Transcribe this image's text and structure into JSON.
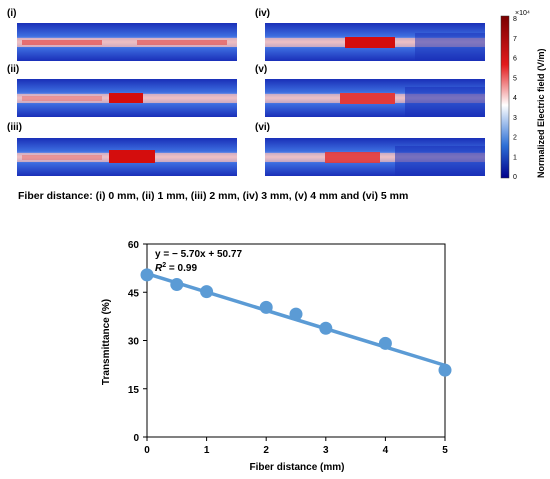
{
  "panels": [
    {
      "label": "(i)"
    },
    {
      "label": "(ii)"
    },
    {
      "label": "(iii)"
    },
    {
      "label": "(iv)"
    },
    {
      "label": "(v)"
    },
    {
      "label": "(vi)"
    }
  ],
  "colorbar": {
    "title": "Normalized Electric field (V/m)",
    "exponent": "×10⁴",
    "ticks": [
      "8",
      "7",
      "6",
      "5",
      "4",
      "3",
      "2",
      "1",
      "0"
    ],
    "colors": [
      "#7a0000",
      "#e31a1c",
      "#ffffff",
      "#2c6fd6",
      "#00008b"
    ]
  },
  "caption": "Fiber distance: (i) 0 mm, (ii) 1 mm, (iii) 2 mm, (iv) 3 mm, (v) 4 mm and (vi) 5 mm",
  "chart_data": {
    "type": "scatter",
    "x": [
      0,
      0.5,
      1,
      2,
      2.5,
      3,
      4,
      5
    ],
    "y": [
      50.4,
      47.4,
      45.2,
      40.3,
      38.2,
      33.8,
      29.1,
      20.8
    ],
    "fit": {
      "slope": -5.7,
      "intercept": 50.77
    },
    "equation": "y = − 5.70x + 50.77",
    "r2_label": "R",
    "r2_value": " = 0.99",
    "xlabel": "Fiber distance (mm)",
    "ylabel": "Transmittance (%)",
    "xlim": [
      0,
      5
    ],
    "ylim": [
      0,
      60
    ],
    "xticks": [
      "0",
      "1",
      "2",
      "3",
      "4",
      "5"
    ],
    "yticks": [
      "0",
      "15",
      "30",
      "45",
      "60"
    ],
    "marker_color": "#5b9bd5",
    "line_color": "#5b9bd5",
    "grid": false
  }
}
